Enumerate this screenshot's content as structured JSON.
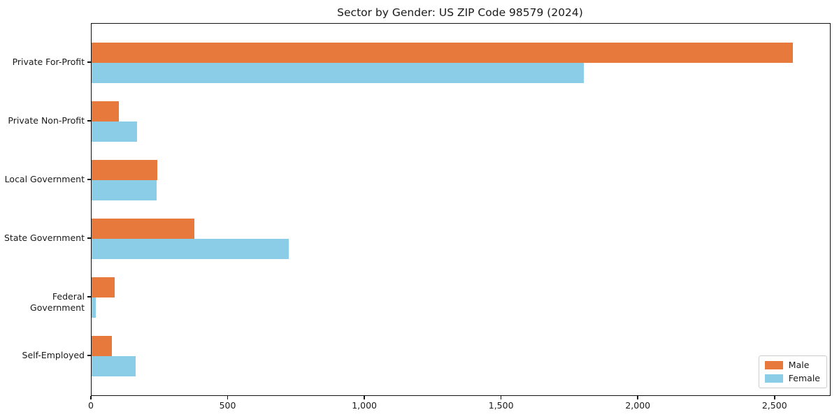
{
  "title": "Sector by Gender: US ZIP Code 98579 (2024)",
  "colors": {
    "male": "#E8793C",
    "female": "#8BCDE6",
    "axis": "#111111",
    "text": "#1a1a1a",
    "legend_border": "#cccccc",
    "background": "#ffffff"
  },
  "legend": {
    "position": "lower right",
    "items": [
      {
        "label": "Male"
      },
      {
        "label": "Female"
      }
    ]
  },
  "chart_data": {
    "type": "bar",
    "orientation": "horizontal",
    "title": "Sector by Gender: US ZIP Code 98579 (2024)",
    "categories": [
      "Private For-Profit",
      "Private Non-Profit",
      "Local Government",
      "State Government",
      "Federal Government",
      "Self-Employed"
    ],
    "series": [
      {
        "name": "Male",
        "color": "#E8793C",
        "values": [
          2565,
          100,
          240,
          375,
          85,
          75
        ]
      },
      {
        "name": "Female",
        "color": "#8BCDE6",
        "values": [
          1800,
          165,
          238,
          720,
          15,
          160
        ]
      }
    ],
    "xlabel": "",
    "ylabel": "",
    "xlim": [
      0,
      2700
    ],
    "xticks": {
      "values": [
        0,
        500,
        1000,
        1500,
        2000,
        2500
      ],
      "labels": [
        "0",
        "500",
        "1,000",
        "1,500",
        "2,000",
        "2,500"
      ]
    },
    "grid": false,
    "legend_position": "lower right"
  }
}
